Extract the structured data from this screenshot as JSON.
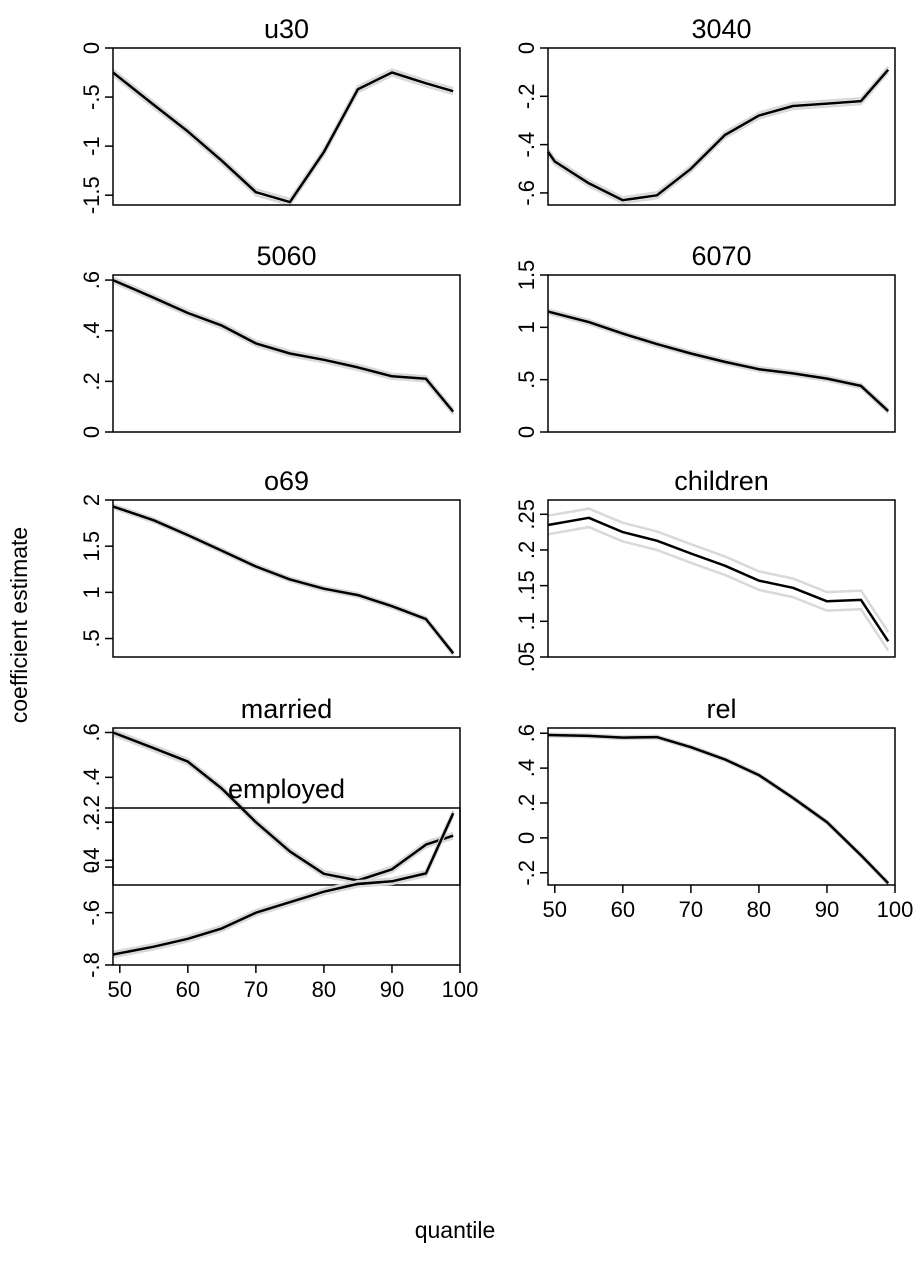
{
  "figure": {
    "y_axis_title": "coefficient estimate",
    "x_axis_title": "quantile",
    "x_ticks": [
      50,
      60,
      70,
      80,
      90,
      100
    ],
    "x_tick_labels": [
      "50",
      "60",
      "70",
      "80",
      "90",
      "100"
    ]
  },
  "chart_data": [
    {
      "type": "line",
      "title": "u30",
      "xlim": [
        49,
        100
      ],
      "ylim": [
        -1.6,
        0.0
      ],
      "y_ticks": [
        0,
        -0.5,
        -1,
        -1.5
      ],
      "y_tick_labels": [
        "0",
        "-.5",
        "-1",
        "-1.5"
      ],
      "show_x_ticks": false,
      "x": [
        49,
        55,
        60,
        65,
        70,
        75,
        80,
        85,
        90,
        95,
        99
      ],
      "values": [
        -0.25,
        -0.58,
        -0.85,
        -1.15,
        -1.47,
        -1.57,
        -1.06,
        -0.42,
        -0.25,
        -0.36,
        -0.44
      ],
      "band_offset": 0.03
    },
    {
      "type": "line",
      "title": "3040",
      "xlim": [
        49,
        100
      ],
      "ylim": [
        -0.65,
        0.0
      ],
      "y_ticks": [
        0,
        -0.2,
        -0.4,
        -0.6
      ],
      "y_tick_labels": [
        "0",
        "-.2",
        "-.4",
        "-.6"
      ],
      "show_x_ticks": false,
      "x": [
        49,
        50,
        55,
        60,
        65,
        70,
        75,
        80,
        85,
        90,
        95,
        99
      ],
      "values": [
        -0.43,
        -0.47,
        -0.56,
        -0.63,
        -0.61,
        -0.5,
        -0.36,
        -0.28,
        -0.24,
        -0.23,
        -0.22,
        -0.09
      ],
      "band_offset": 0.012
    },
    {
      "type": "line",
      "title": "5060",
      "xlim": [
        49,
        100
      ],
      "ylim": [
        0.0,
        0.62
      ],
      "y_ticks": [
        0,
        0.2,
        0.4,
        0.6
      ],
      "y_tick_labels": [
        "0",
        ".2",
        ".4",
        ".6"
      ],
      "show_x_ticks": false,
      "x": [
        49,
        55,
        60,
        65,
        70,
        75,
        80,
        85,
        90,
        95,
        99
      ],
      "values": [
        0.6,
        0.53,
        0.47,
        0.42,
        0.35,
        0.31,
        0.285,
        0.255,
        0.22,
        0.21,
        0.08
      ],
      "band_offset": 0.01
    },
    {
      "type": "line",
      "title": "6070",
      "xlim": [
        49,
        100
      ],
      "ylim": [
        0.0,
        1.5
      ],
      "y_ticks": [
        0,
        0.5,
        1,
        1.5
      ],
      "y_tick_labels": [
        "0",
        ".5",
        "1",
        "1.5"
      ],
      "show_x_ticks": false,
      "x": [
        49,
        55,
        60,
        65,
        70,
        75,
        80,
        85,
        90,
        95,
        99
      ],
      "values": [
        1.15,
        1.05,
        0.94,
        0.84,
        0.75,
        0.67,
        0.6,
        0.56,
        0.51,
        0.44,
        0.2
      ],
      "band_offset": 0.02
    },
    {
      "type": "line",
      "title": "o69",
      "xlim": [
        49,
        100
      ],
      "ylim": [
        0.3,
        2.0
      ],
      "y_ticks": [
        0.5,
        1,
        1.5,
        2
      ],
      "y_tick_labels": [
        ".5",
        "1",
        "1.5",
        "2"
      ],
      "show_x_ticks": false,
      "x": [
        49,
        55,
        60,
        65,
        70,
        75,
        80,
        85,
        90,
        95,
        99
      ],
      "values": [
        1.93,
        1.78,
        1.62,
        1.45,
        1.28,
        1.14,
        1.04,
        0.97,
        0.85,
        0.71,
        0.34
      ],
      "band_offset": 0.02
    },
    {
      "type": "line",
      "title": "children",
      "xlim": [
        49,
        100
      ],
      "ylim": [
        0.05,
        0.27
      ],
      "y_ticks": [
        0.05,
        0.1,
        0.15,
        0.2,
        0.25
      ],
      "y_tick_labels": [
        ".05",
        ".1",
        ".15",
        ".2",
        ".25"
      ],
      "show_x_ticks": false,
      "x": [
        49,
        55,
        60,
        65,
        70,
        75,
        80,
        85,
        90,
        95,
        99
      ],
      "values": [
        0.235,
        0.245,
        0.225,
        0.213,
        0.195,
        0.178,
        0.157,
        0.147,
        0.128,
        0.13,
        0.072
      ],
      "band_offset": 0.013
    },
    {
      "type": "line",
      "title": "married",
      "xlim": [
        49,
        100
      ],
      "ylim": [
        -0.08,
        0.62
      ],
      "y_ticks": [
        0,
        0.2,
        0.4,
        0.6
      ],
      "y_tick_labels": [
        "0",
        ".2",
        ".4",
        ".6"
      ],
      "show_x_ticks": false,
      "x": [
        49,
        55,
        60,
        65,
        70,
        75,
        80,
        85,
        90,
        95,
        99
      ],
      "values": [
        0.6,
        0.53,
        0.47,
        0.35,
        0.2,
        0.07,
        -0.03,
        -0.06,
        -0.01,
        0.1,
        0.14
      ],
      "band_offset": 0.012
    },
    {
      "type": "line",
      "title": "rel",
      "xlim": [
        49,
        100
      ],
      "ylim": [
        -0.27,
        0.63
      ],
      "y_ticks": [
        -0.2,
        0,
        0.2,
        0.4,
        0.6
      ],
      "y_tick_labels": [
        "-.2",
        "0",
        ".2",
        ".4",
        ".6"
      ],
      "show_x_ticks": true,
      "x": [
        49,
        55,
        60,
        65,
        70,
        75,
        80,
        85,
        90,
        95,
        99
      ],
      "values": [
        0.59,
        0.585,
        0.575,
        0.578,
        0.52,
        0.45,
        0.36,
        0.23,
        0.09,
        -0.1,
        -0.26
      ],
      "band_offset": 0.008
    },
    {
      "type": "line",
      "title": "employed",
      "xlim": [
        49,
        100
      ],
      "ylim": [
        -0.8,
        -0.2
      ],
      "y_ticks": [
        -0.2,
        -0.4,
        -0.6,
        -0.8
      ],
      "y_tick_labels": [
        "-.2",
        "-.4",
        "-.6",
        "-.8"
      ],
      "show_x_ticks": true,
      "x": [
        49,
        55,
        60,
        65,
        70,
        75,
        80,
        85,
        90,
        95,
        99
      ],
      "values": [
        -0.76,
        -0.73,
        -0.7,
        -0.66,
        -0.6,
        -0.56,
        -0.52,
        -0.49,
        -0.48,
        -0.45,
        -0.22
      ],
      "band_offset": 0.01
    }
  ]
}
